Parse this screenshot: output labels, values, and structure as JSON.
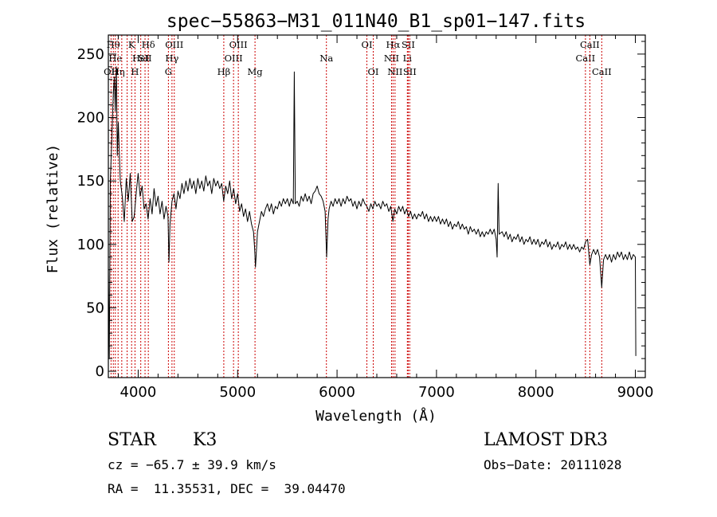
{
  "chart_data": {
    "type": "line",
    "title": "spec−55863−M31_011N40_B1_sp01−147.fits",
    "xlabel": "Wavelength (Å)",
    "ylabel": "Flux (relative)",
    "xlim": [
      3700,
      9100
    ],
    "ylim": [
      -5,
      265
    ],
    "x_ticks": [
      4000,
      5000,
      6000,
      7000,
      8000,
      9000
    ],
    "y_ticks": [
      0,
      50,
      100,
      150,
      200,
      250
    ],
    "series": [
      {
        "name": "flux",
        "points": [
          [
            3700,
            82
          ],
          [
            3710,
            10
          ],
          [
            3720,
            150
          ],
          [
            3735,
            185
          ],
          [
            3750,
            218
          ],
          [
            3760,
            232
          ],
          [
            3770,
            205
          ],
          [
            3780,
            240
          ],
          [
            3790,
            170
          ],
          [
            3800,
            196
          ],
          [
            3820,
            150
          ],
          [
            3840,
            138
          ],
          [
            3860,
            118
          ],
          [
            3880,
            152
          ],
          [
            3900,
            134
          ],
          [
            3920,
            156
          ],
          [
            3940,
            118
          ],
          [
            3960,
            122
          ],
          [
            3980,
            140
          ],
          [
            4000,
            156
          ],
          [
            4020,
            138
          ],
          [
            4040,
            146
          ],
          [
            4060,
            128
          ],
          [
            4080,
            132
          ],
          [
            4100,
            120
          ],
          [
            4120,
            136
          ],
          [
            4140,
            124
          ],
          [
            4160,
            144
          ],
          [
            4180,
            130
          ],
          [
            4200,
            138
          ],
          [
            4220,
            124
          ],
          [
            4240,
            134
          ],
          [
            4260,
            120
          ],
          [
            4280,
            130
          ],
          [
            4300,
            122
          ],
          [
            4310,
            86
          ],
          [
            4320,
            116
          ],
          [
            4340,
            134
          ],
          [
            4360,
            140
          ],
          [
            4380,
            128
          ],
          [
            4400,
            142
          ],
          [
            4420,
            136
          ],
          [
            4440,
            148
          ],
          [
            4460,
            140
          ],
          [
            4480,
            150
          ],
          [
            4500,
            142
          ],
          [
            4520,
            152
          ],
          [
            4540,
            144
          ],
          [
            4560,
            150
          ],
          [
            4580,
            140
          ],
          [
            4600,
            152
          ],
          [
            4620,
            144
          ],
          [
            4640,
            150
          ],
          [
            4660,
            142
          ],
          [
            4680,
            154
          ],
          [
            4700,
            146
          ],
          [
            4720,
            150
          ],
          [
            4740,
            140
          ],
          [
            4760,
            152
          ],
          [
            4780,
            146
          ],
          [
            4800,
            150
          ],
          [
            4820,
            144
          ],
          [
            4840,
            148
          ],
          [
            4860,
            134
          ],
          [
            4880,
            146
          ],
          [
            4900,
            140
          ],
          [
            4920,
            150
          ],
          [
            4940,
            136
          ],
          [
            4960,
            144
          ],
          [
            4980,
            132
          ],
          [
            5000,
            140
          ],
          [
            5020,
            126
          ],
          [
            5040,
            132
          ],
          [
            5060,
            122
          ],
          [
            5080,
            128
          ],
          [
            5100,
            118
          ],
          [
            5120,
            126
          ],
          [
            5140,
            116
          ],
          [
            5160,
            110
          ],
          [
            5170,
            98
          ],
          [
            5180,
            82
          ],
          [
            5200,
            110
          ],
          [
            5220,
            118
          ],
          [
            5240,
            126
          ],
          [
            5260,
            122
          ],
          [
            5280,
            128
          ],
          [
            5300,
            132
          ],
          [
            5320,
            126
          ],
          [
            5340,
            132
          ],
          [
            5360,
            124
          ],
          [
            5380,
            130
          ],
          [
            5400,
            128
          ],
          [
            5420,
            134
          ],
          [
            5440,
            130
          ],
          [
            5460,
            136
          ],
          [
            5480,
            132
          ],
          [
            5500,
            136
          ],
          [
            5520,
            130
          ],
          [
            5540,
            136
          ],
          [
            5560,
            132
          ],
          [
            5570,
            236
          ],
          [
            5580,
            132
          ],
          [
            5600,
            134
          ],
          [
            5620,
            130
          ],
          [
            5640,
            138
          ],
          [
            5660,
            134
          ],
          [
            5680,
            140
          ],
          [
            5700,
            134
          ],
          [
            5720,
            138
          ],
          [
            5740,
            132
          ],
          [
            5760,
            140
          ],
          [
            5780,
            142
          ],
          [
            5800,
            146
          ],
          [
            5820,
            140
          ],
          [
            5840,
            138
          ],
          [
            5860,
            134
          ],
          [
            5880,
            126
          ],
          [
            5895,
            90
          ],
          [
            5910,
            120
          ],
          [
            5920,
            128
          ],
          [
            5940,
            134
          ],
          [
            5960,
            130
          ],
          [
            5980,
            136
          ],
          [
            6000,
            132
          ],
          [
            6020,
            136
          ],
          [
            6040,
            130
          ],
          [
            6060,
            136
          ],
          [
            6080,
            132
          ],
          [
            6100,
            138
          ],
          [
            6120,
            134
          ],
          [
            6140,
            136
          ],
          [
            6160,
            130
          ],
          [
            6180,
            134
          ],
          [
            6200,
            128
          ],
          [
            6220,
            134
          ],
          [
            6240,
            130
          ],
          [
            6260,
            136
          ],
          [
            6280,
            132
          ],
          [
            6300,
            130
          ],
          [
            6320,
            126
          ],
          [
            6340,
            132
          ],
          [
            6360,
            128
          ],
          [
            6380,
            134
          ],
          [
            6400,
            130
          ],
          [
            6420,
            132
          ],
          [
            6440,
            128
          ],
          [
            6460,
            134
          ],
          [
            6480,
            130
          ],
          [
            6500,
            132
          ],
          [
            6520,
            126
          ],
          [
            6540,
            130
          ],
          [
            6562,
            118
          ],
          [
            6580,
            128
          ],
          [
            6600,
            124
          ],
          [
            6620,
            130
          ],
          [
            6640,
            126
          ],
          [
            6660,
            130
          ],
          [
            6680,
            124
          ],
          [
            6700,
            128
          ],
          [
            6720,
            122
          ],
          [
            6740,
            126
          ],
          [
            6760,
            120
          ],
          [
            6780,
            124
          ],
          [
            6800,
            120
          ],
          [
            6820,
            124
          ],
          [
            6840,
            122
          ],
          [
            6860,
            126
          ],
          [
            6880,
            120
          ],
          [
            6900,
            124
          ],
          [
            6920,
            118
          ],
          [
            6940,
            122
          ],
          [
            6960,
            118
          ],
          [
            6980,
            122
          ],
          [
            7000,
            118
          ],
          [
            7020,
            122
          ],
          [
            7040,
            116
          ],
          [
            7060,
            120
          ],
          [
            7080,
            116
          ],
          [
            7100,
            120
          ],
          [
            7120,
            114
          ],
          [
            7140,
            118
          ],
          [
            7160,
            112
          ],
          [
            7180,
            116
          ],
          [
            7200,
            114
          ],
          [
            7220,
            118
          ],
          [
            7240,
            112
          ],
          [
            7260,
            116
          ],
          [
            7280,
            112
          ],
          [
            7300,
            114
          ],
          [
            7320,
            108
          ],
          [
            7340,
            114
          ],
          [
            7360,
            110
          ],
          [
            7380,
            112
          ],
          [
            7400,
            108
          ],
          [
            7420,
            112
          ],
          [
            7440,
            106
          ],
          [
            7460,
            110
          ],
          [
            7480,
            106
          ],
          [
            7500,
            110
          ],
          [
            7520,
            108
          ],
          [
            7540,
            112
          ],
          [
            7560,
            108
          ],
          [
            7580,
            112
          ],
          [
            7600,
            104
          ],
          [
            7610,
            90
          ],
          [
            7620,
            148
          ],
          [
            7630,
            108
          ],
          [
            7660,
            110
          ],
          [
            7680,
            106
          ],
          [
            7700,
            110
          ],
          [
            7720,
            104
          ],
          [
            7740,
            108
          ],
          [
            7760,
            102
          ],
          [
            7780,
            106
          ],
          [
            7800,
            104
          ],
          [
            7820,
            108
          ],
          [
            7840,
            102
          ],
          [
            7860,
            106
          ],
          [
            7880,
            100
          ],
          [
            7900,
            104
          ],
          [
            7920,
            102
          ],
          [
            7940,
            106
          ],
          [
            7960,
            100
          ],
          [
            7980,
            104
          ],
          [
            8000,
            100
          ],
          [
            8020,
            104
          ],
          [
            8040,
            98
          ],
          [
            8060,
            102
          ],
          [
            8080,
            100
          ],
          [
            8100,
            104
          ],
          [
            8120,
            98
          ],
          [
            8140,
            102
          ],
          [
            8160,
            96
          ],
          [
            8180,
            100
          ],
          [
            8200,
            98
          ],
          [
            8220,
            102
          ],
          [
            8240,
            96
          ],
          [
            8260,
            100
          ],
          [
            8280,
            98
          ],
          [
            8300,
            102
          ],
          [
            8320,
            96
          ],
          [
            8340,
            100
          ],
          [
            8360,
            96
          ],
          [
            8380,
            100
          ],
          [
            8400,
            96
          ],
          [
            8420,
            98
          ],
          [
            8440,
            94
          ],
          [
            8460,
            98
          ],
          [
            8480,
            96
          ],
          [
            8498,
            102
          ],
          [
            8520,
            104
          ],
          [
            8542,
            84
          ],
          [
            8560,
            92
          ],
          [
            8580,
            96
          ],
          [
            8600,
            92
          ],
          [
            8620,
            96
          ],
          [
            8640,
            90
          ],
          [
            8662,
            66
          ],
          [
            8680,
            88
          ],
          [
            8700,
            92
          ],
          [
            8720,
            88
          ],
          [
            8740,
            92
          ],
          [
            8760,
            86
          ],
          [
            8780,
            92
          ],
          [
            8800,
            88
          ],
          [
            8820,
            94
          ],
          [
            8840,
            90
          ],
          [
            8860,
            94
          ],
          [
            8880,
            88
          ],
          [
            8900,
            92
          ],
          [
            8920,
            88
          ],
          [
            8940,
            94
          ],
          [
            8960,
            88
          ],
          [
            8980,
            92
          ],
          [
            9000,
            90
          ],
          [
            9005,
            12
          ]
        ]
      }
    ],
    "lines": [
      {
        "wl": 3727,
        "label": "OII",
        "row": 3
      },
      {
        "wl": 3750,
        "label": "Hθ",
        "row": 1
      },
      {
        "wl": 3770,
        "label": "He",
        "row": 2
      },
      {
        "wl": 3798,
        "label": "Hη",
        "row": 3
      },
      {
        "wl": 3835,
        "label": "",
        "row": 0
      },
      {
        "wl": 3889,
        "label": "",
        "row": 0
      },
      {
        "wl": 3934,
        "label": "K",
        "row": 1
      },
      {
        "wl": 3968,
        "label": "H",
        "row": 3
      },
      {
        "wl": 4026,
        "label": "HeI",
        "row": 2
      },
      {
        "wl": 4069,
        "label": "SII",
        "row": 2
      },
      {
        "wl": 4102,
        "label": "Hδ",
        "row": 1
      },
      {
        "wl": 4304,
        "label": "G",
        "row": 3
      },
      {
        "wl": 4340,
        "label": "Hγ",
        "row": 2
      },
      {
        "wl": 4363,
        "label": "OIII",
        "row": 1
      },
      {
        "wl": 4861,
        "label": "Hβ",
        "row": 3
      },
      {
        "wl": 4959,
        "label": "OIII",
        "row": 2
      },
      {
        "wl": 5007,
        "label": "OIII",
        "row": 1
      },
      {
        "wl": 5175,
        "label": "Mg",
        "row": 3
      },
      {
        "wl": 5893,
        "label": "Na",
        "row": 2
      },
      {
        "wl": 6300,
        "label": "OI",
        "row": 1
      },
      {
        "wl": 6364,
        "label": "OI",
        "row": 3
      },
      {
        "wl": 6548,
        "label": "NII",
        "row": 2
      },
      {
        "wl": 6563,
        "label": "Hα",
        "row": 1
      },
      {
        "wl": 6583,
        "label": "NII",
        "row": 3
      },
      {
        "wl": 6707,
        "label": "Li",
        "row": 2
      },
      {
        "wl": 6716,
        "label": "SII",
        "row": 1
      },
      {
        "wl": 6731,
        "label": "SII",
        "row": 3
      },
      {
        "wl": 8498,
        "label": "CaII",
        "row": 2
      },
      {
        "wl": 8542,
        "label": "CaII",
        "row": 1
      },
      {
        "wl": 8662,
        "label": "CaII",
        "row": 3
      }
    ]
  },
  "info": {
    "class": "STAR",
    "subclass": "K3",
    "survey": "LAMOST DR3",
    "cz": "cz = −65.7 ± 39.9 km/s",
    "obs_date": "Obs−Date: 20111028",
    "coords": "RA =  11.35531, DEC =  39.04470"
  },
  "colors": {
    "spectrum": "#000000",
    "line_marker": "#cc0000",
    "frame": "#000000"
  }
}
